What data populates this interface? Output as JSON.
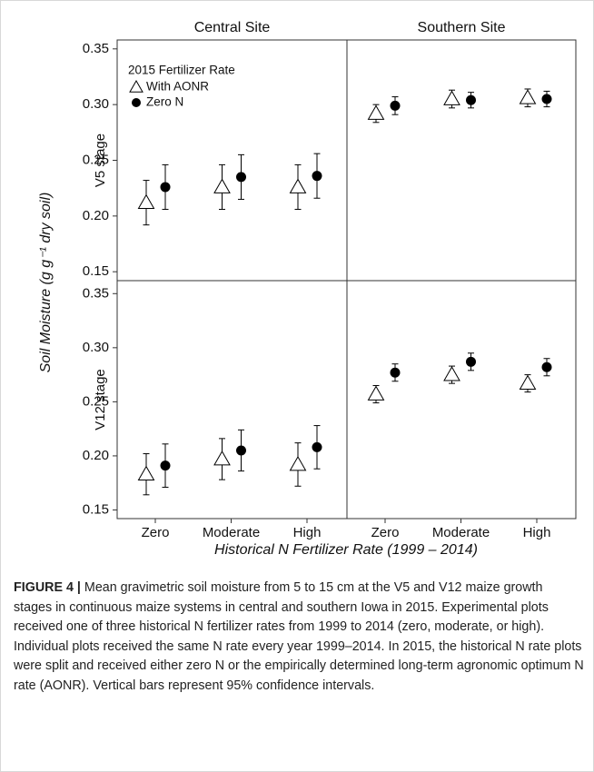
{
  "figure": {
    "ylabel": "Soil Moisture (g g⁻¹ dry soil)",
    "xlabel": "Historical N Fertilizer Rate (1999 – 2014)"
  },
  "chart_data": [
    {
      "type": "errorbar",
      "title": "Central Site",
      "ylabel": "V5 stage",
      "legend_title": "2015 Fertilizer Rate",
      "categories": [
        null,
        null,
        null
      ],
      "ylim": [
        0.142,
        0.358
      ],
      "yticks": [
        0.15,
        {
          "value": 0.2,
          "label": "0.20"
        },
        0.25,
        {
          "value": 0.3,
          "label": "0.30"
        },
        0.35
      ],
      "series": [
        {
          "name": "With AONR",
          "marker": "triangle",
          "color": "#000000",
          "values": [
            0.212,
            0.226,
            0.226
          ],
          "errors": [
            0.02,
            0.02,
            0.02
          ]
        },
        {
          "name": "Zero N",
          "marker": "circle",
          "color": "#000000",
          "values": [
            0.226,
            0.235,
            0.236
          ],
          "errors": [
            0.02,
            0.02,
            0.02
          ]
        }
      ]
    },
    {
      "type": "errorbar",
      "title": "Southern Site",
      "categories": [
        null,
        null,
        null
      ],
      "ylim": [
        0.142,
        0.358
      ],
      "series": [
        {
          "marker": "triangle",
          "color": "#000000",
          "values": [
            0.292,
            0.305,
            0.306
          ],
          "errors": [
            0.008,
            0.008,
            0.008
          ]
        },
        {
          "marker": "circle",
          "color": "#000000",
          "values": [
            0.299,
            0.304,
            0.305
          ],
          "errors": [
            0.008,
            0.007,
            0.007
          ]
        }
      ]
    },
    {
      "type": "errorbar",
      "ylabel": "V12 stage",
      "categories": [
        "Zero",
        "Moderate",
        "High"
      ],
      "ylim": [
        0.142,
        0.362
      ],
      "yticks": [
        0.15,
        {
          "value": 0.2,
          "label": "0.20"
        },
        0.25,
        {
          "value": 0.3,
          "label": "0.30"
        },
        0.35
      ],
      "series": [
        {
          "marker": "triangle",
          "color": "#000000",
          "values": [
            0.183,
            0.197,
            0.192
          ],
          "errors": [
            0.019,
            0.019,
            0.02
          ]
        },
        {
          "marker": "circle",
          "color": "#000000",
          "values": [
            0.191,
            0.205,
            0.208
          ],
          "errors": [
            0.02,
            0.019,
            0.02
          ]
        }
      ]
    },
    {
      "type": "errorbar",
      "categories": [
        "Zero",
        "Moderate",
        "High"
      ],
      "ylim": [
        0.142,
        0.362
      ],
      "series": [
        {
          "marker": "triangle",
          "color": "#000000",
          "values": [
            0.257,
            0.275,
            0.267
          ],
          "errors": [
            0.008,
            0.008,
            0.008
          ]
        },
        {
          "marker": "circle",
          "color": "#000000",
          "values": [
            0.277,
            0.287,
            0.282
          ],
          "errors": [
            0.008,
            0.008,
            0.008
          ]
        }
      ]
    }
  ],
  "caption": {
    "label": "FIGURE 4 |",
    "text": "Mean gravimetric soil moisture from 5 to 15 cm at the V5 and V12 maize growth stages in continuous maize systems in central and southern Iowa in 2015. Experimental plots received one of three historical N fertilizer rates from 1999 to 2014 (zero, moderate, or high). Individual plots received the same N rate every year 1999–2014. In 2015, the historical N rate plots were split and received either zero N or the empirically determined long-term agronomic optimum N rate (AONR). Vertical bars represent 95% confidence intervals."
  }
}
